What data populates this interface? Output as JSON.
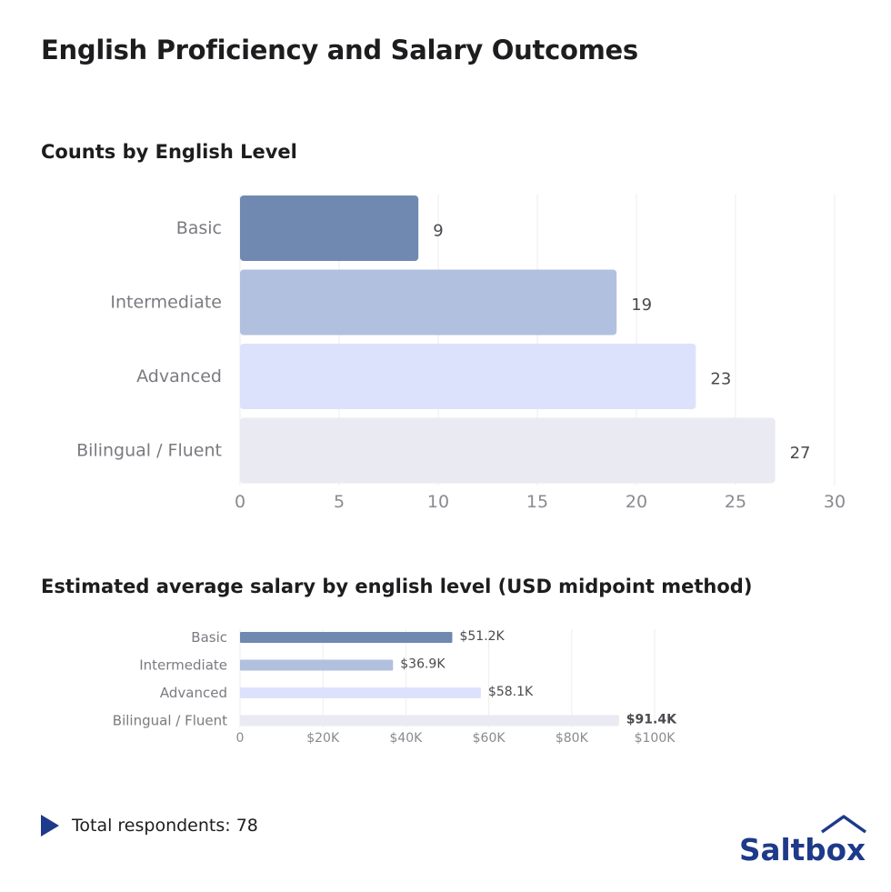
{
  "title": "English Proficiency and Salary Outcomes",
  "footer": {
    "total_respondents": "Total respondents: 78"
  },
  "brand": {
    "name": "Saltbox",
    "color": "#1e3a8a"
  },
  "colors": [
    "#7089b0",
    "#b2c0df",
    "#dde2fc",
    "#eaeaf2"
  ],
  "chart_data": [
    {
      "type": "bar",
      "orientation": "horizontal",
      "title": "Counts by English Level",
      "categories": [
        "Basic",
        "Intermediate",
        "Advanced",
        "Bilingual / Fluent"
      ],
      "values": [
        9,
        19,
        23,
        27
      ],
      "value_labels": [
        "9",
        "19",
        "23",
        "27"
      ],
      "xlim": [
        0,
        30
      ],
      "xticks": [
        0,
        5,
        10,
        15,
        20,
        25,
        30
      ],
      "xtick_labels": [
        "0",
        "5",
        "10",
        "15",
        "20",
        "25",
        "30"
      ],
      "grid": true
    },
    {
      "type": "bar",
      "orientation": "horizontal",
      "title": "Estimated average salary by english level (USD midpoint method)",
      "categories": [
        "Basic",
        "Intermediate",
        "Advanced",
        "Bilingual / Fluent"
      ],
      "values": [
        51200,
        36900,
        58100,
        91400
      ],
      "value_labels": [
        "$51.2K",
        "$36.9K",
        "$58.1K",
        "$91.4K"
      ],
      "xlim": [
        0,
        100000
      ],
      "xticks": [
        0,
        20000,
        40000,
        60000,
        80000,
        100000
      ],
      "xtick_labels": [
        "0",
        "$20K",
        "$40K",
        "$60K",
        "$80K",
        "$100K"
      ],
      "grid": true
    }
  ]
}
